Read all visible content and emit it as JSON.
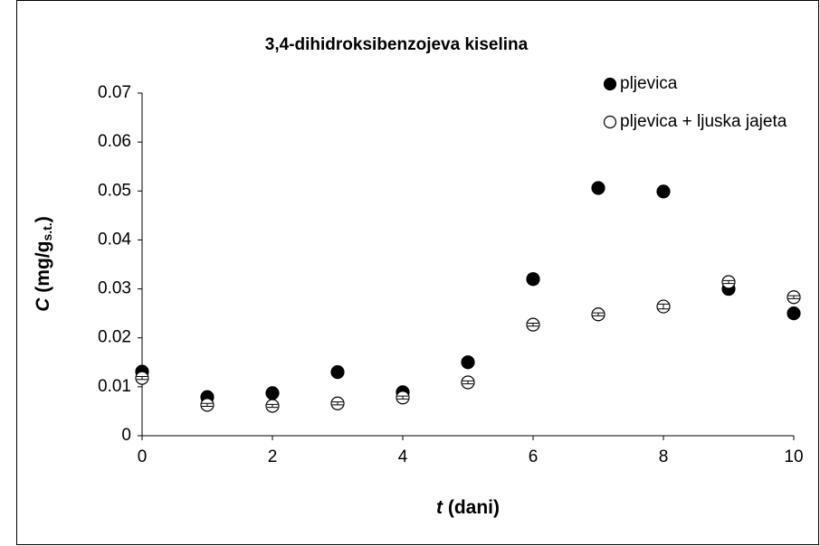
{
  "chart_data": {
    "type": "scatter",
    "title": "3,4-dihidroksibenzojeva kiselina",
    "x_label": {
      "symbol": "t",
      "rest": " (dani)"
    },
    "y_label": {
      "symbol": "C",
      "unit": " (mg/g",
      "subscript": "s.t.",
      "close": ")"
    },
    "x": [
      0,
      1,
      2,
      3,
      4,
      5,
      6,
      7,
      8,
      9,
      10
    ],
    "series": [
      {
        "name": "pljevica",
        "color": "#000000",
        "filled": true,
        "values": [
          0.0131,
          0.0079,
          0.0087,
          0.013,
          0.0089,
          0.015,
          0.032,
          0.0506,
          0.0499,
          0.03,
          0.025
        ],
        "errors": [
          0.0003,
          0.0003,
          0.0003,
          0.0003,
          0.0003,
          0.0003,
          0.001,
          0.0003,
          0.0003,
          0.0003,
          0.0003
        ]
      },
      {
        "name": "pljevica + ljuska jajeta",
        "color": "#000000",
        "filled": false,
        "values": [
          0.0118,
          0.0063,
          0.0061,
          0.0066,
          0.0078,
          0.0109,
          0.0227,
          0.0248,
          0.0264,
          0.0314,
          0.0283
        ],
        "errors": [
          0.0003,
          0.0003,
          0.0003,
          0.0003,
          0.0003,
          0.0003,
          0.0003,
          0.0003,
          0.0005,
          0.0003,
          0.0003
        ]
      }
    ],
    "xlim": [
      0,
      10
    ],
    "xticks": [
      0,
      2,
      4,
      6,
      8,
      10
    ],
    "ylim": [
      0,
      0.07
    ],
    "yticks": [
      0,
      0.01,
      0.02,
      0.03,
      0.04,
      0.05,
      0.06,
      0.07
    ],
    "grid": false,
    "legend": "top-right"
  }
}
